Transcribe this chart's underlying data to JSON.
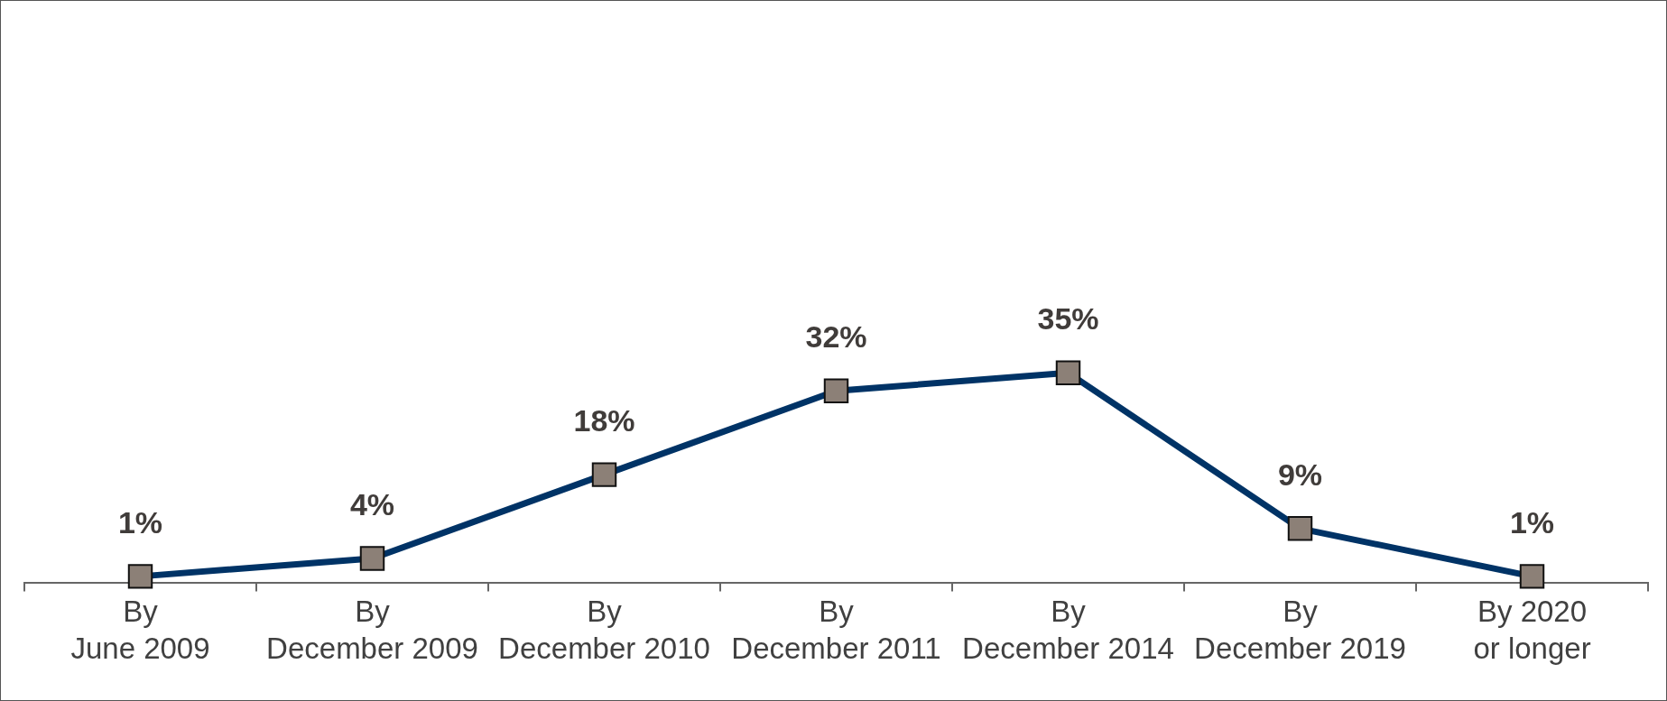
{
  "chart_data": {
    "type": "line",
    "categories": [
      "By\nJune 2009",
      "By\nDecember 2009",
      "By\nDecember 2010",
      "By\nDecember 2011",
      "By\nDecember 2014",
      "By\nDecember 2019",
      "By 2020\nor longer"
    ],
    "series": [
      {
        "color": "#003366",
        "values": [
          1,
          4,
          18,
          32,
          35,
          9,
          1
        ],
        "value_labels": [
          "1%",
          "4%",
          "18%",
          "32%",
          "35%",
          "9%",
          "1%"
        ]
      }
    ],
    "tick_labels": "x",
    "marker": "square",
    "line_style": "solid",
    "grid": false,
    "legend": false
  }
}
